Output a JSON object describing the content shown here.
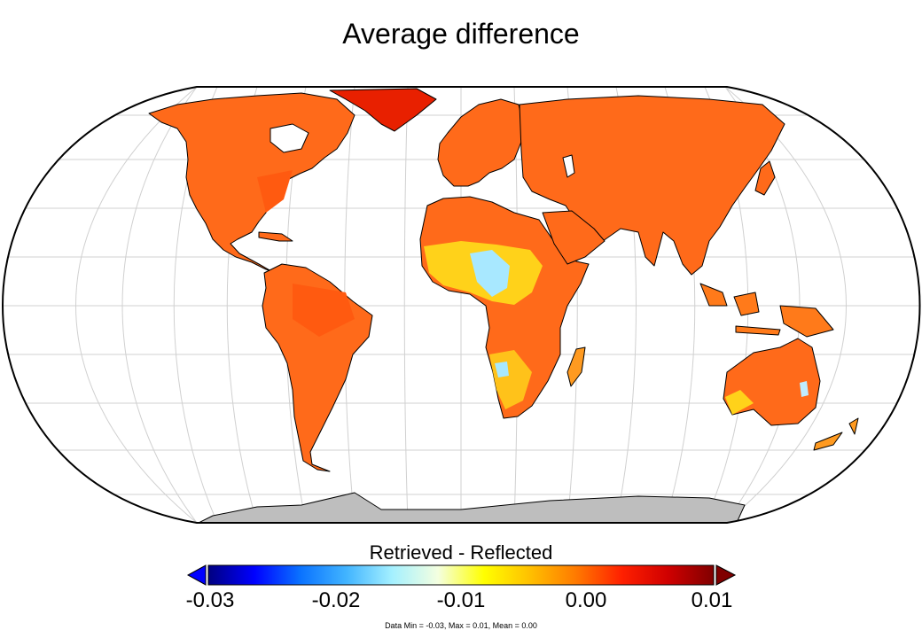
{
  "title": "Average difference",
  "colorbar": {
    "label": "Retrieved - Reflected",
    "ticks": [
      "-0.03",
      "-0.02",
      "-0.01",
      "0.00",
      "0.01"
    ],
    "range": [
      -0.03,
      0.01
    ],
    "colors": [
      "#000080",
      "#0000ff",
      "#0a72ff",
      "#41b4ff",
      "#a4f0ff",
      "#f4ffe0",
      "#ffff00",
      "#ffc000",
      "#ff7a00",
      "#ff2000",
      "#d00000",
      "#800000"
    ]
  },
  "stats": "Data Min = -0.03, Max = 0.01, Mean = 0.00",
  "colors": {
    "land": "#ff6a1a",
    "land_light": "#ff9a20",
    "land_yellow": "#ffd21a",
    "land_cyan": "#a8e8ff",
    "land_red": "#e82000",
    "antarctica": "#bebebe",
    "ocean": "#ffffff",
    "grid": "#d0d0d0",
    "border": "#000000"
  }
}
